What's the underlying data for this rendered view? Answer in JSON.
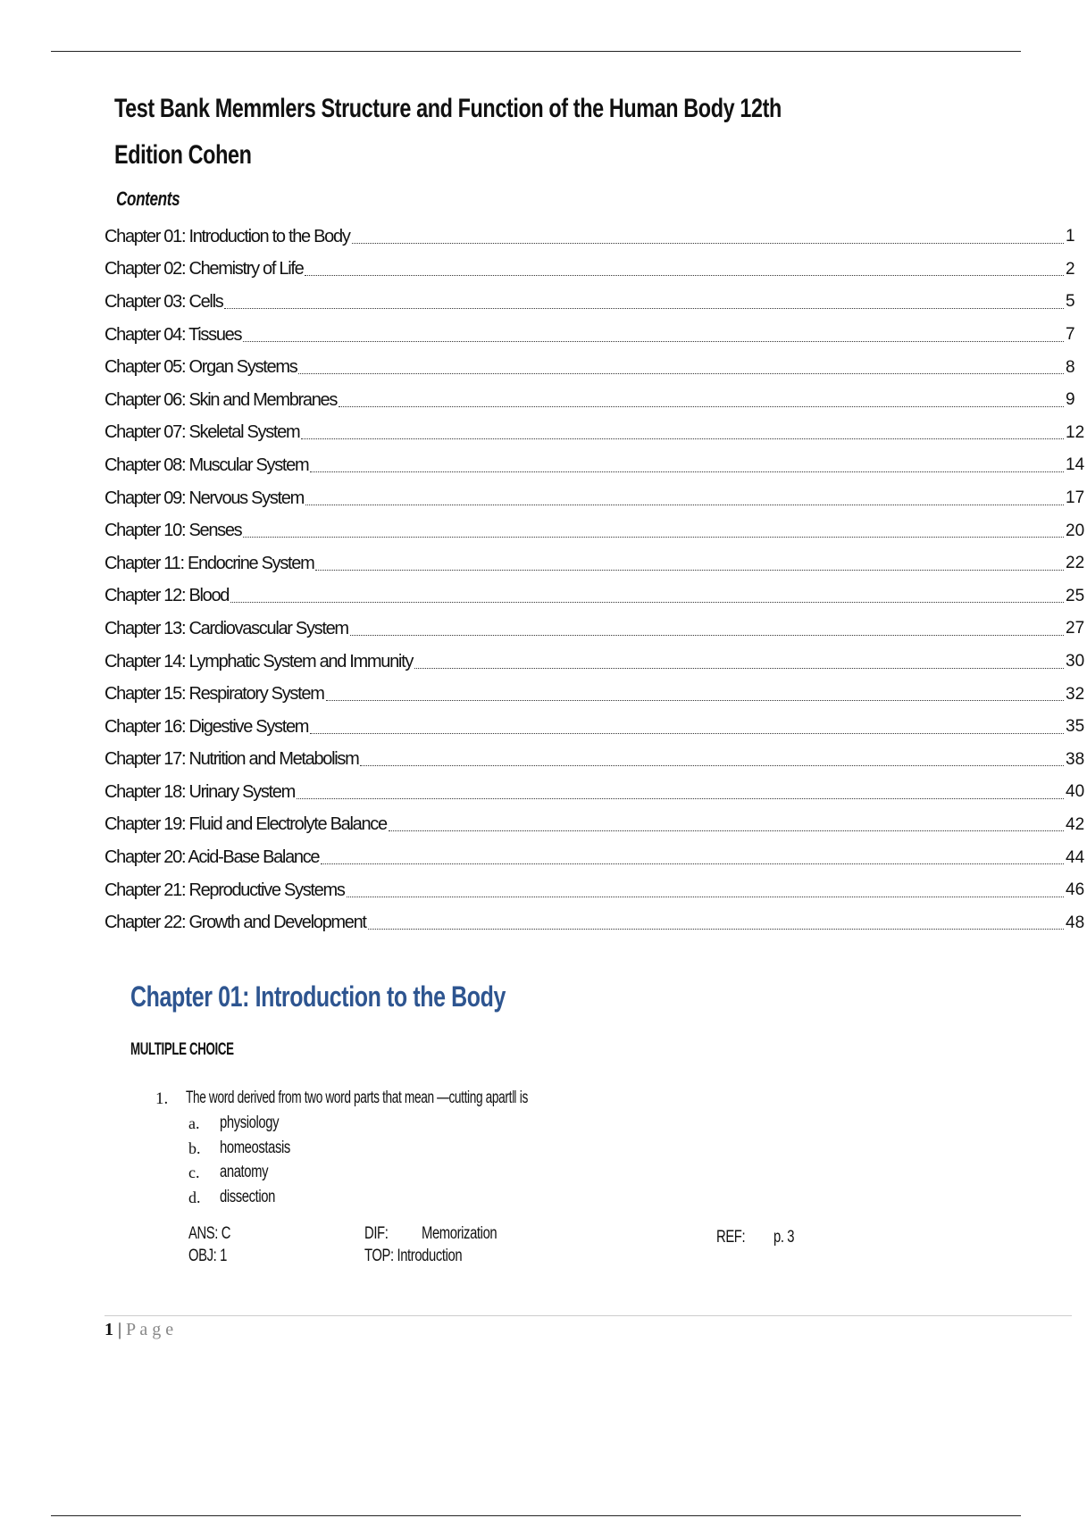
{
  "title_line1": "Test Bank Memmlers Structure and Function of the Human Body 12th",
  "title_line2": "Edition Cohen",
  "contents_heading": "Contents",
  "toc": [
    {
      "label": "Chapter 01: Introduction to the Body",
      "page": "1"
    },
    {
      "label": "Chapter 02: Chemistry of Life",
      "page": "2"
    },
    {
      "label": "Chapter 03: Cells",
      "page": "5"
    },
    {
      "label": "Chapter 04: Tissues",
      "page": "7"
    },
    {
      "label": "Chapter 05: Organ Systems",
      "page": "8"
    },
    {
      "label": "Chapter 06: Skin and Membranes",
      "page": "9"
    },
    {
      "label": "Chapter 07: Skeletal System",
      "page": "12"
    },
    {
      "label": "Chapter 08: Muscular System",
      "page": "14"
    },
    {
      "label": "Chapter 09: Nervous System",
      "page": "17"
    },
    {
      "label": "Chapter 10: Senses",
      "page": "20"
    },
    {
      "label": "Chapter 11: Endocrine System",
      "page": "22"
    },
    {
      "label": "Chapter 12: Blood",
      "page": "25"
    },
    {
      "label": "Chapter 13: Cardiovascular System",
      "page": "27"
    },
    {
      "label": "Chapter 14: Lymphatic System and Immunity",
      "page": "30"
    },
    {
      "label": "Chapter 15: Respiratory System",
      "page": "32"
    },
    {
      "label": "Chapter 16: Digestive System",
      "page": "35"
    },
    {
      "label": "Chapter 17: Nutrition and Metabolism",
      "page": "38"
    },
    {
      "label": "Chapter 18: Urinary System",
      "page": "40"
    },
    {
      "label": "Chapter 19: Fluid and Electrolyte Balance",
      "page": "42"
    },
    {
      "label": "Chapter 20: Acid-Base Balance",
      "page": "44"
    },
    {
      "label": "Chapter 21: Reproductive Systems",
      "page": "46"
    },
    {
      "label": "Chapter 22: Growth and Development",
      "page": "48"
    }
  ],
  "chapter_heading": "Chapter 01: Introduction to the Body",
  "chapter_color": "#2e5590",
  "section_label": "MULTIPLE CHOICE",
  "question": {
    "number": "1.",
    "text": "The word derived from two word parts that mean —cutting apart‖ is",
    "options": [
      {
        "letter": "a.",
        "text": "physiology"
      },
      {
        "letter": "b.",
        "text": "homeostasis"
      },
      {
        "letter": "c.",
        "text": "anatomy"
      },
      {
        "letter": "d.",
        "text": "dissection"
      }
    ],
    "ans": "ANS: C",
    "dif_label": "DIF:",
    "dif_value": "Memorization",
    "ref_label": "REF:",
    "ref_value": "p. 3",
    "obj": "OBJ: 1",
    "top": "TOP: Introduction"
  },
  "footer": {
    "page_number": "1",
    "separator": "|",
    "page_word": "P a g e"
  }
}
